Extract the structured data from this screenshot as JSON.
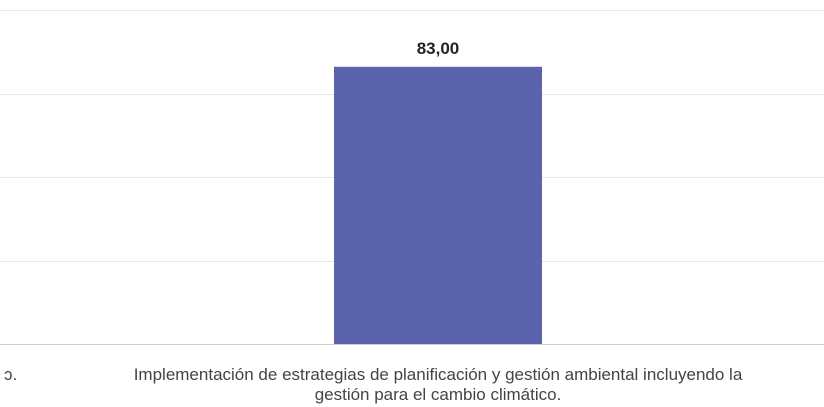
{
  "chart_data": {
    "type": "bar",
    "categories": [
      "...o.",
      "Implementación de estrategias de planificación y gestión ambiental incluyendo la gestión para el cambio climático."
    ],
    "values": [
      null,
      83.0
    ],
    "value_labels": [
      "",
      "83,00"
    ],
    "ylim": [
      0,
      100
    ],
    "grid": true,
    "colors": {
      "bar": "#5b63ae",
      "grid": "#e6e6e6",
      "text": "#444444"
    }
  },
  "labels": {
    "left_cut": "ɔ.",
    "main_line1": "Implementación de estrategias de planificación y gestión ambiental incluyendo la",
    "main_line2": "gestión para el cambio climático."
  }
}
